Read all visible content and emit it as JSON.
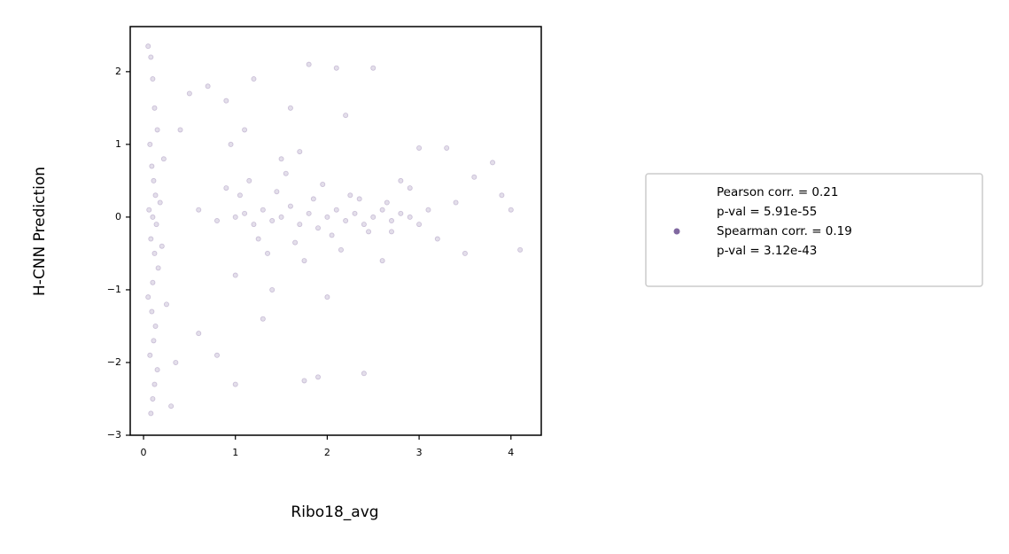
{
  "chart_data": {
    "type": "scatter",
    "xlabel": "Ribo18_avg",
    "ylabel": "H-CNN Prediction",
    "xlim": [
      -0.145,
      4.33
    ],
    "ylim": [
      -3,
      2.62
    ],
    "xticks": [
      0,
      1,
      2,
      3,
      4
    ],
    "yticks": [
      {
        "value": -3,
        "label": "−3"
      },
      {
        "value": -2,
        "label": "−2"
      },
      {
        "value": -1,
        "label": "−1"
      },
      0,
      1,
      2
    ],
    "legend_position": "outside right",
    "series": [
      {
        "name": "Pearson corr. = 0.21\np-val = 5.91e-55\nSpearman corr. = 0.19\np-val = 3.12e-43",
        "color": "#8068a0",
        "x": [
          0.05,
          0.08,
          0.1,
          0.12,
          0.15,
          0.07,
          0.09,
          0.11,
          0.13,
          0.06,
          0.1,
          0.14,
          0.08,
          0.12,
          0.16,
          0.1,
          0.05,
          0.09,
          0.13,
          0.11,
          0.07,
          0.15,
          0.12,
          0.1,
          0.08,
          0.18,
          0.2,
          0.22,
          0.25,
          0.3,
          0.6,
          0.8,
          1.0,
          1.1,
          1.2,
          1.3,
          1.4,
          1.5,
          1.6,
          1.7,
          1.8,
          1.9,
          2.0,
          2.1,
          2.2,
          2.3,
          2.4,
          2.5,
          2.6,
          2.7,
          2.8,
          2.9,
          3.0,
          1.05,
          1.25,
          1.45,
          1.65,
          1.85,
          2.05,
          2.25,
          2.45,
          2.65,
          0.9,
          1.15,
          1.35,
          1.55,
          1.75,
          1.95,
          2.15,
          2.35,
          0.5,
          0.7,
          0.9,
          1.0,
          1.2,
          1.6,
          1.8,
          1.9,
          2.1,
          2.5,
          1.1,
          1.4,
          1.7,
          2.0,
          2.2,
          0.6,
          0.8,
          1.3,
          1.5,
          2.8,
          3.0,
          3.3,
          3.5,
          3.6,
          3.8,
          3.9,
          4.0,
          4.1,
          3.2,
          3.4,
          2.6,
          2.9,
          1.0,
          0.4,
          0.35,
          2.7,
          3.1,
          1.75,
          0.95,
          2.4
        ],
        "y": [
          2.35,
          2.2,
          1.9,
          1.5,
          1.2,
          1.0,
          0.7,
          0.5,
          0.3,
          0.1,
          0.0,
          -0.1,
          -0.3,
          -0.5,
          -0.7,
          -0.9,
          -1.1,
          -1.3,
          -1.5,
          -1.7,
          -1.9,
          -2.1,
          -2.3,
          -2.5,
          -2.7,
          0.2,
          -0.4,
          0.8,
          -1.2,
          -2.6,
          0.1,
          -0.05,
          0.0,
          0.05,
          -0.1,
          0.1,
          -0.05,
          0.0,
          0.15,
          -0.1,
          0.05,
          -0.15,
          0.0,
          0.1,
          -0.05,
          0.05,
          -0.1,
          0.0,
          0.1,
          -0.05,
          0.05,
          0.0,
          -0.1,
          0.3,
          -0.3,
          0.35,
          -0.35,
          0.25,
          -0.25,
          0.3,
          -0.2,
          0.2,
          0.4,
          0.5,
          -0.5,
          0.6,
          -0.6,
          0.45,
          -0.45,
          0.25,
          1.7,
          1.8,
          1.6,
          -2.3,
          1.9,
          1.5,
          2.1,
          -2.2,
          2.05,
          2.05,
          1.2,
          -1.0,
          0.9,
          -1.1,
          1.4,
          -1.6,
          -1.9,
          -1.4,
          0.8,
          0.5,
          0.95,
          0.95,
          -0.5,
          0.55,
          0.75,
          0.3,
          0.1,
          -0.45,
          -0.3,
          0.2,
          -0.6,
          0.4,
          -0.8,
          1.2,
          -2.0,
          -0.2,
          0.1,
          -2.25,
          1.0,
          -2.15
        ]
      }
    ]
  }
}
